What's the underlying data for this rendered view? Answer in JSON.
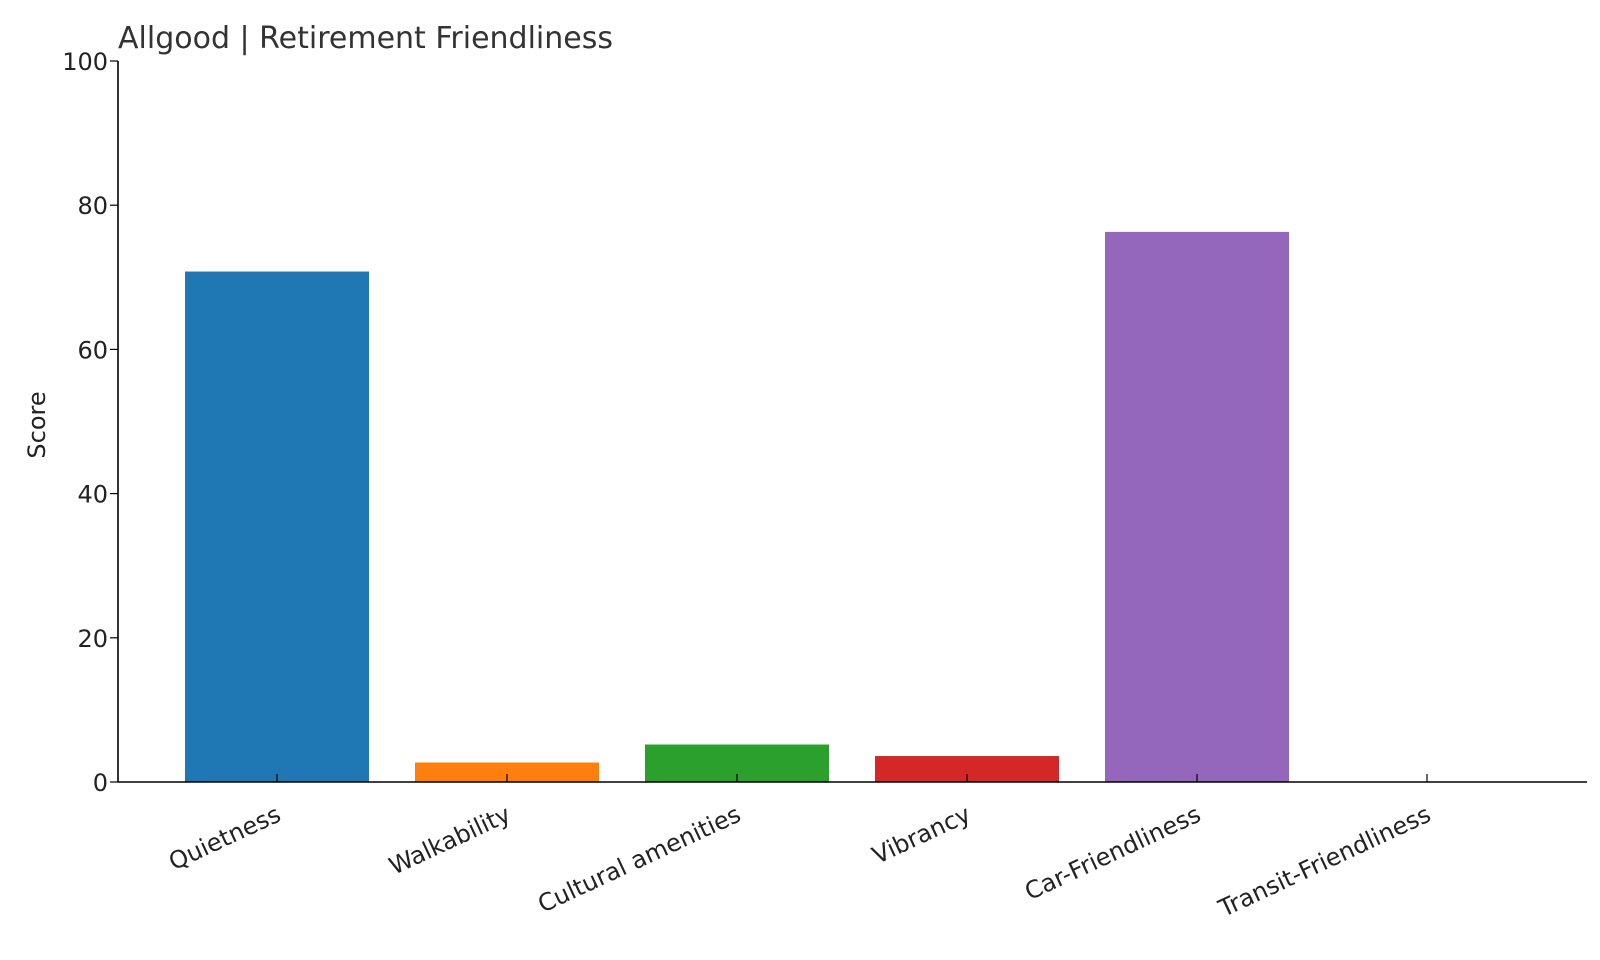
{
  "chart_data": {
    "type": "bar",
    "title": "Allgood | Retirement Friendliness",
    "xlabel": "",
    "ylabel": "Score",
    "ylim": [
      0,
      100
    ],
    "yticks": [
      0,
      20,
      40,
      60,
      80,
      100
    ],
    "grid": false,
    "categories": [
      "Quietness",
      "Walkability",
      "Cultural amenities",
      "Vibrancy",
      "Car-Friendliness",
      "Transit-Friendliness"
    ],
    "values": [
      70.8,
      2.7,
      5.2,
      3.6,
      76.3,
      0
    ],
    "colors": [
      "#1f77b4",
      "#ff7f0e",
      "#2ca02c",
      "#d62728",
      "#9467bd",
      "#8c564b"
    ]
  }
}
